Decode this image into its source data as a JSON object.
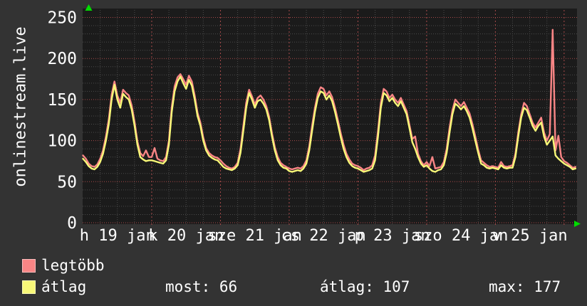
{
  "title": "onlinestream.live",
  "chart_data": {
    "type": "line",
    "title": "onlinestream.live",
    "x_tick_labels": [
      "h 19 jan",
      "k 20 jan",
      "sze 21 jan",
      "cs 22 jan",
      "p 23 jan",
      "szo 24 jan",
      "v 25 jan"
    ],
    "x_axis_note": "7 days, 19 jan 00:00 to 26 jan ~04:00, one value per hour",
    "y_ticks": [
      0,
      50,
      100,
      150,
      200,
      250
    ],
    "ylim": [
      0,
      260
    ],
    "grid": {
      "minor_step_y": 10,
      "major_step_y": 50,
      "minor_step_hours": 6,
      "major_step_hours": 24
    },
    "legend_position": "bottom",
    "series": [
      {
        "name": "legtöbb",
        "color": "#f98585",
        "values": [
          82,
          78,
          72,
          69,
          68,
          71,
          78,
          88,
          105,
          126,
          156,
          172,
          155,
          146,
          162,
          158,
          155,
          143,
          123,
          99,
          85,
          81,
          88,
          80,
          80,
          91,
          78,
          76,
          75,
          80,
          100,
          141,
          166,
          177,
          181,
          175,
          168,
          179,
          172,
          155,
          134,
          122,
          104,
          91,
          85,
          82,
          80,
          79,
          76,
          72,
          69,
          67,
          66,
          68,
          73,
          90,
          118,
          146,
          162,
          154,
          144,
          152,
          155,
          150,
          142,
          129,
          109,
          92,
          80,
          73,
          70,
          68,
          66,
          65,
          66,
          67,
          66,
          69,
          76,
          93,
          118,
          140,
          157,
          165,
          163,
          155,
          160,
          153,
          140,
          125,
          109,
          95,
          84,
          77,
          72,
          70,
          69,
          67,
          64,
          66,
          67,
          70,
          82,
          112,
          146,
          163,
          160,
          152,
          156,
          150,
          146,
          152,
          144,
          136,
          119,
          102,
          105,
          84,
          75,
          70,
          74,
          69,
          80,
          66,
          67,
          68,
          74,
          90,
          116,
          137,
          150,
          146,
          142,
          147,
          140,
          133,
          120,
          105,
          89,
          76,
          73,
          70,
          68,
          69,
          68,
          67,
          74,
          69,
          68,
          69,
          70,
          84,
          110,
          132,
          146,
          142,
          132,
          122,
          116,
          122,
          128,
          110,
          100,
          108,
          235,
          88,
          106,
          80,
          75,
          73,
          70,
          67,
          68
        ]
      },
      {
        "name": "átlag",
        "color": "#f8f878",
        "values": [
          78,
          74,
          69,
          66,
          65,
          68,
          74,
          84,
          100,
          120,
          150,
          168,
          150,
          140,
          157,
          153,
          150,
          138,
          118,
          95,
          80,
          77,
          75,
          76,
          76,
          75,
          74,
          73,
          72,
          76,
          95,
          135,
          160,
          172,
          178,
          170,
          163,
          174,
          167,
          150,
          130,
          118,
          100,
          88,
          82,
          79,
          77,
          76,
          72,
          68,
          66,
          65,
          64,
          66,
          70,
          85,
          112,
          140,
          158,
          150,
          140,
          148,
          150,
          145,
          138,
          125,
          105,
          88,
          76,
          70,
          67,
          66,
          63,
          62,
          63,
          64,
          63,
          66,
          72,
          88,
          112,
          135,
          152,
          160,
          158,
          150,
          155,
          148,
          135,
          120,
          104,
          90,
          80,
          73,
          69,
          67,
          66,
          64,
          62,
          63,
          64,
          66,
          76,
          105,
          140,
          158,
          155,
          148,
          152,
          146,
          142,
          148,
          140,
          132,
          115,
          98,
          90,
          80,
          72,
          68,
          70,
          66,
          63,
          62,
          64,
          65,
          70,
          85,
          110,
          132,
          145,
          142,
          138,
          142,
          136,
          128,
          115,
          100,
          85,
          72,
          70,
          67,
          66,
          67,
          66,
          65,
          70,
          67,
          66,
          67,
          67,
          80,
          105,
          128,
          140,
          137,
          128,
          118,
          112,
          118,
          122,
          105,
          95,
          100,
          105,
          82,
          78,
          75,
          72,
          70,
          68,
          65,
          66
        ]
      }
    ]
  },
  "legend": {
    "items": [
      {
        "label": "legtöbb",
        "color": "#f98585"
      },
      {
        "label": "átlag",
        "color": "#f8f878"
      }
    ],
    "stats": [
      "most: 66",
      "átlag: 107",
      "max: 177"
    ]
  },
  "colors": {
    "background": "#333333",
    "plot_background": "#1b1b1b",
    "minor_grid": "#4b4b4b",
    "major_grid": "#a84a4a",
    "axis_arrow": "#00dd00",
    "text": "#ffffff"
  }
}
